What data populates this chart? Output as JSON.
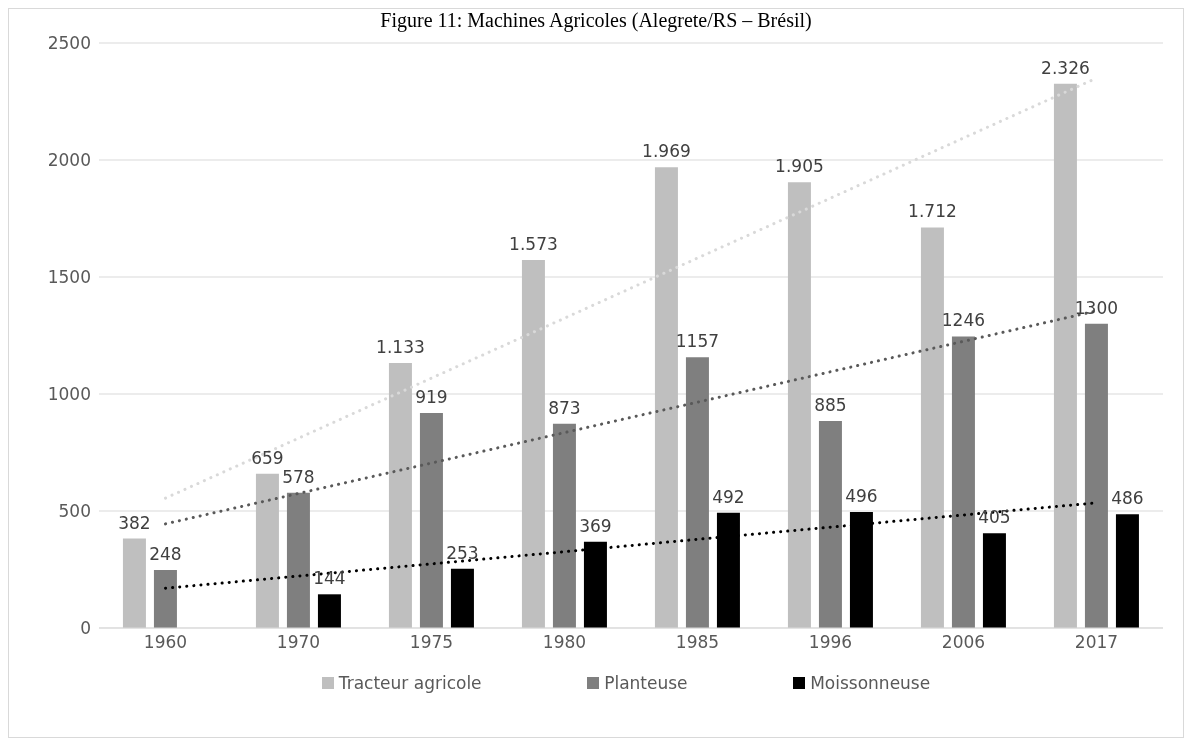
{
  "chart_data": {
    "type": "bar",
    "title": "Figure 11: Machines Agricoles (Alegrete/RS – Brésil)",
    "categories": [
      "1960",
      "1970",
      "1975",
      "1980",
      "1985",
      "1996",
      "2006",
      "2017"
    ],
    "series": [
      {
        "name": "Tracteur agricole",
        "color": "#bfbfbf",
        "values": [
          382,
          659,
          1133,
          1573,
          1969,
          1905,
          1712,
          2326
        ],
        "value_labels": [
          "382",
          "659",
          "1.133",
          "1.573",
          "1.969",
          "1.905",
          "1.712",
          "2.326"
        ]
      },
      {
        "name": "Planteuse",
        "color": "#7f7f7f",
        "values": [
          248,
          578,
          919,
          873,
          1157,
          885,
          1246,
          1300
        ],
        "value_labels": [
          "248",
          "578",
          "919",
          "873",
          "1157",
          "885",
          "1246",
          "1300"
        ]
      },
      {
        "name": "Moissonneuse",
        "color": "#000000",
        "values": [
          null,
          144,
          253,
          369,
          492,
          496,
          405,
          486
        ],
        "value_labels": [
          null,
          "144",
          "253",
          "369",
          "492",
          "496",
          "405",
          "486"
        ]
      },
      {
        "type": "line",
        "color": "#d9d9d9",
        "line_style": "dotted",
        "values": [
          555,
          811,
          1068,
          1324,
          1581,
          1837,
          2094,
          2350
        ]
      },
      {
        "type": "line",
        "color": "#595959",
        "line_style": "dotted",
        "values": [
          445,
          575,
          705,
          835,
          965,
          1095,
          1225,
          1355
        ]
      },
      {
        "type": "line",
        "color": "#000000",
        "line_style": "dotted",
        "values": [
          170,
          222,
          274,
          326,
          379,
          431,
          483,
          535
        ]
      }
    ],
    "ylim": [
      0,
      2500
    ],
    "yticks": [
      0,
      500,
      1000,
      1500,
      2000,
      2500
    ],
    "grid": "y",
    "legend": "bottom"
  }
}
